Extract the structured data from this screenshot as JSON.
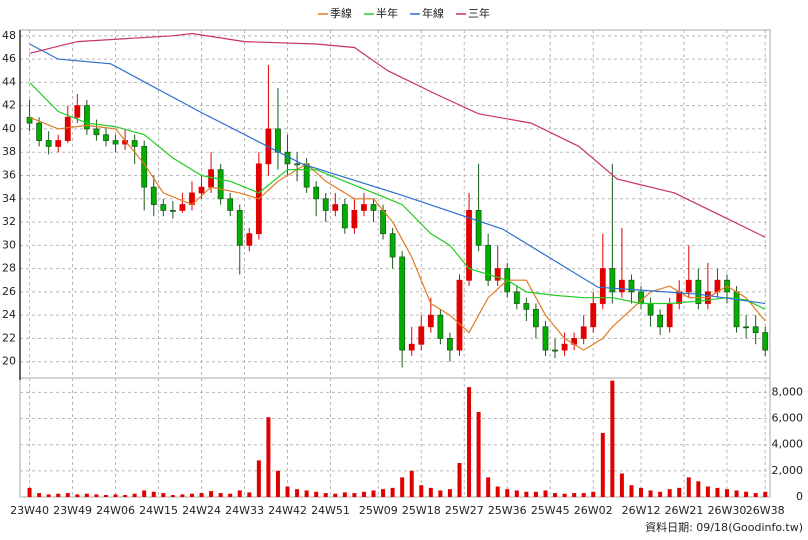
{
  "chart_data": {
    "type": "candlestick",
    "up_color": "#e00000",
    "down_color": "#00b000",
    "grid": true,
    "xlim": [
      -2,
      155
    ],
    "xticks": [
      {
        "value": 0,
        "label": "23W40"
      },
      {
        "value": 9,
        "label": "23W49"
      },
      {
        "value": 18,
        "label": "24W06"
      },
      {
        "value": 27,
        "label": "24W15"
      },
      {
        "value": 36,
        "label": "24W24"
      },
      {
        "value": 45,
        "label": "24W33"
      },
      {
        "value": 54,
        "label": "24W42"
      },
      {
        "value": 63,
        "label": "24W51"
      },
      {
        "value": 73,
        "label": "25W09"
      },
      {
        "value": 82,
        "label": "25W18"
      },
      {
        "value": 91,
        "label": "25W27"
      },
      {
        "value": 100,
        "label": "25W36"
      },
      {
        "value": 109,
        "label": "25W45"
      },
      {
        "value": 118,
        "label": "26W02"
      },
      {
        "value": 128,
        "label": "26W12"
      },
      {
        "value": 137,
        "label": "26W21"
      },
      {
        "value": 146,
        "label": "26W30"
      },
      {
        "value": 154,
        "label": "26W38"
      }
    ],
    "ylim": [
      18.6,
      48.5
    ],
    "yticks": [
      20,
      22,
      24,
      26,
      28,
      30,
      32,
      34,
      36,
      38,
      40,
      42,
      44,
      46,
      48
    ],
    "candles": {
      "x": [
        0,
        2,
        4,
        6,
        8,
        10,
        12,
        14,
        16,
        18,
        20,
        22,
        24,
        26,
        28,
        30,
        32,
        34,
        36,
        38,
        40,
        42,
        44,
        46,
        48,
        50,
        52,
        54,
        56,
        58,
        60,
        62,
        64,
        66,
        68,
        70,
        72,
        74,
        76,
        78,
        80,
        82,
        84,
        86,
        88,
        90,
        92,
        94,
        96,
        98,
        100,
        102,
        104,
        106,
        108,
        110,
        112,
        114,
        116,
        118,
        120,
        122,
        124,
        126,
        128,
        130,
        132,
        134,
        136,
        138,
        140,
        142,
        144,
        146,
        148,
        150,
        152,
        154
      ],
      "open": [
        41,
        40.5,
        39,
        38.5,
        39,
        41,
        42,
        40,
        39.5,
        39,
        38.7,
        39,
        38.5,
        35,
        33.5,
        33,
        33,
        33.5,
        34.5,
        35,
        36.5,
        34,
        33,
        30,
        31,
        37,
        40,
        38,
        37,
        37,
        35,
        34,
        33,
        33.5,
        31.5,
        33,
        33.5,
        33,
        31,
        29,
        21,
        21.5,
        23,
        24,
        22,
        21,
        27,
        33,
        30,
        27,
        28,
        26,
        25,
        24.5,
        23,
        21,
        21,
        21.5,
        22,
        23,
        25,
        28,
        26,
        27,
        26,
        25,
        24,
        23,
        25,
        26,
        27,
        25,
        26,
        27,
        26,
        23,
        23,
        22.5
      ],
      "high": [
        42.5,
        41,
        39.8,
        39.5,
        42,
        43,
        42.5,
        40.8,
        40,
        39.5,
        40,
        39.5,
        39,
        36,
        34,
        33.8,
        34.5,
        35.5,
        36,
        38,
        37,
        34.5,
        33.5,
        31.5,
        38,
        45.5,
        43.5,
        39.5,
        38,
        37.5,
        35.5,
        34.5,
        34.5,
        34,
        34,
        34.5,
        34,
        33.5,
        31.5,
        29.5,
        23,
        24,
        25.5,
        24.5,
        22.5,
        27.5,
        34.5,
        37,
        31,
        30,
        28.5,
        26.5,
        25.5,
        25,
        23.5,
        22,
        22.5,
        22.5,
        24,
        26,
        31,
        37,
        31.5,
        27.5,
        26.5,
        25.5,
        24.5,
        25.5,
        27,
        30,
        28,
        28.5,
        28,
        27.5,
        26.5,
        24,
        24,
        23
      ],
      "low": [
        39.8,
        38.5,
        37.8,
        38,
        38.8,
        40.5,
        39.5,
        39,
        38.5,
        38,
        38.2,
        37,
        33,
        32.5,
        32.5,
        32.3,
        32.8,
        33,
        34,
        34.5,
        33.5,
        32.5,
        27.5,
        29.5,
        30.5,
        36,
        36.5,
        36,
        35.5,
        34.5,
        32.5,
        32,
        32.5,
        31,
        31,
        32.5,
        32,
        30.5,
        28,
        19.5,
        20.5,
        21,
        22.5,
        21.5,
        20,
        20.5,
        26.5,
        29.5,
        26.5,
        26.5,
        25.5,
        24.5,
        23.5,
        22,
        20.5,
        20.3,
        20.5,
        21,
        21.5,
        22.5,
        24.5,
        25,
        25.5,
        25,
        24.5,
        23,
        22.3,
        22.5,
        24.5,
        25.5,
        24.5,
        24.5,
        25.5,
        25,
        22.5,
        22,
        21.5,
        20.5
      ],
      "close": [
        40.5,
        39,
        38.5,
        39,
        41,
        42,
        40,
        39.5,
        39,
        38.7,
        39,
        38.5,
        35,
        33.5,
        33,
        33,
        33.5,
        34.5,
        35,
        36.5,
        34,
        33,
        30,
        31,
        37,
        40,
        38,
        37,
        37,
        35,
        34,
        33,
        33.5,
        31.5,
        33,
        33.5,
        33,
        31,
        29,
        21,
        21.5,
        23,
        24,
        22,
        21,
        27,
        33,
        30,
        27,
        28,
        26,
        25,
        24.5,
        23,
        21,
        21,
        21.5,
        22,
        23,
        25,
        28,
        26,
        27,
        26,
        25,
        24,
        23,
        25,
        26,
        27,
        25,
        26,
        27,
        26,
        23,
        23,
        22.5,
        21
      ]
    },
    "series": [
      {
        "name": "季線",
        "color": "#e07b20",
        "x": [
          0,
          6,
          12,
          18,
          24,
          28,
          34,
          38,
          44,
          48,
          52,
          58,
          62,
          68,
          72,
          76,
          80,
          84,
          88,
          92,
          96,
          100,
          104,
          108,
          112,
          116,
          120,
          122,
          126,
          130,
          134,
          138,
          142,
          146,
          150,
          154
        ],
        "values": [
          41,
          40,
          40.3,
          40,
          37,
          34.5,
          33.5,
          35,
          34.5,
          34,
          35.5,
          37,
          35.5,
          34,
          34,
          32,
          29,
          25,
          24,
          22.5,
          25.5,
          27,
          27,
          24,
          22,
          21,
          22,
          23,
          24.5,
          26,
          26.5,
          25.5,
          25.5,
          26.5,
          25.5,
          23.5
        ]
      },
      {
        "name": "半年",
        "color": "#22cc22",
        "x": [
          0,
          6,
          12,
          18,
          24,
          30,
          36,
          42,
          48,
          54,
          60,
          66,
          72,
          78,
          84,
          88,
          92,
          96,
          100,
          104,
          110,
          116,
          122,
          128,
          134,
          140,
          146,
          150,
          154
        ],
        "values": [
          44,
          41.5,
          40.5,
          40.2,
          39.5,
          37.5,
          36,
          35.5,
          34.5,
          36.5,
          36.5,
          35.5,
          34.5,
          33.5,
          31,
          30,
          28,
          27.5,
          27,
          26,
          25.7,
          25.5,
          25.5,
          25,
          25,
          25.2,
          25.5,
          25.3,
          24.5
        ]
      },
      {
        "name": "年線",
        "color": "#2a6fd0",
        "x": [
          0,
          6,
          17,
          36,
          57,
          78,
          99,
          119,
          140,
          154
        ],
        "values": [
          47.3,
          46,
          45.6,
          41.4,
          37,
          34.3,
          31.4,
          26.4,
          25.8,
          25
        ]
      },
      {
        "name": "三年",
        "color": "#c8306e",
        "x": [
          0,
          10,
          30,
          34,
          45,
          60,
          68,
          75,
          85,
          94,
          105,
          115,
          123,
          135,
          145,
          154
        ],
        "values": [
          46.5,
          47.5,
          48,
          48.2,
          47.5,
          47.3,
          47,
          45,
          43,
          41.3,
          40.5,
          38.5,
          35.7,
          34.5,
          32.5,
          30.7
        ]
      }
    ],
    "volume": {
      "color": "#e00000",
      "values": [
        700,
        300,
        200,
        250,
        300,
        200,
        250,
        200,
        150,
        200,
        150,
        250,
        500,
        400,
        300,
        150,
        200,
        250,
        300,
        450,
        300,
        250,
        500,
        350,
        2800,
        6100,
        2000,
        800,
        600,
        500,
        400,
        300,
        250,
        350,
        300,
        400,
        500,
        600,
        700,
        1500,
        2000,
        900,
        700,
        500,
        600,
        2600,
        8400,
        6500,
        1500,
        800,
        600,
        500,
        400,
        400,
        500,
        300,
        250,
        300,
        300,
        400,
        4900,
        8900,
        1800,
        900,
        700,
        500,
        400,
        600,
        700,
        1500,
        1200,
        800,
        700,
        600,
        500,
        400,
        300,
        400
      ],
      "ylim": [
        0,
        9100
      ],
      "yticks": [
        0,
        {
          "value": 2000,
          "label": "2,000"
        },
        {
          "value": 4000,
          "label": "4,000"
        },
        {
          "value": 6000,
          "label": "6,000"
        },
        {
          "value": 8000,
          "label": "8,000"
        }
      ]
    },
    "footer": "資料日期: 09/18",
    "source": "(Goodinfo.tw)"
  }
}
